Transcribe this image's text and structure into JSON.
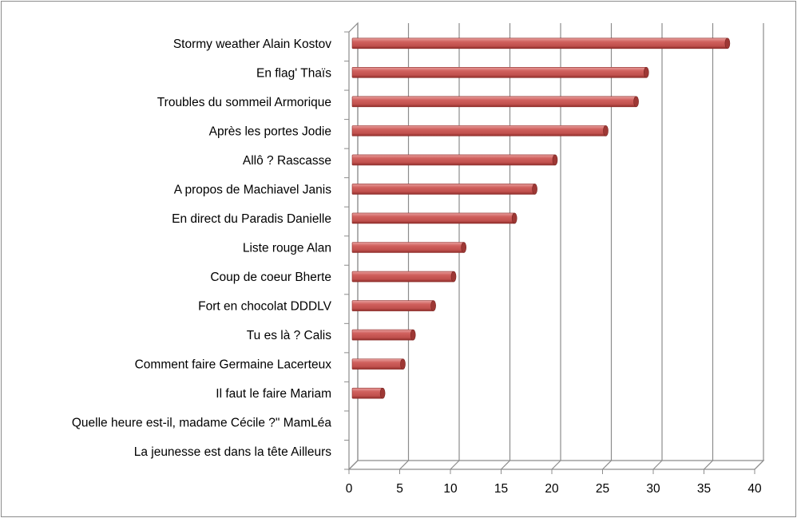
{
  "chart_data": {
    "type": "bar",
    "orientation": "horizontal",
    "style": "3d-cylinder",
    "categories": [
      "Stormy weather Alain Kostov",
      "En flag' Thaïs",
      "Troubles du sommeil Armorique",
      "Après les portes Jodie",
      "Allô ? Rascasse",
      "A propos de Machiavel Janis",
      "En direct du Paradis Danielle",
      "Liste rouge Alan",
      "Coup de coeur    Bherte",
      "Fort en chocolat  DDDLV",
      "Tu es là ? Calis",
      "Comment faire Germaine Lacerteux",
      "Il faut le faire Mariam",
      "Quelle heure est-il, madame Cécile ?\" MamLéa",
      "La jeunesse est dans la tête Ailleurs"
    ],
    "values": [
      37,
      29,
      28,
      25,
      20,
      18,
      16,
      11,
      10,
      8,
      6,
      5,
      3,
      0,
      0
    ],
    "xlim": [
      0,
      40
    ],
    "xticks": [
      "0",
      "5",
      "10",
      "15",
      "20",
      "25",
      "30",
      "35",
      "40"
    ],
    "grid": true,
    "legend": "none",
    "title": "",
    "xlabel": "",
    "ylabel": "",
    "bar_color": "#c0504d"
  }
}
